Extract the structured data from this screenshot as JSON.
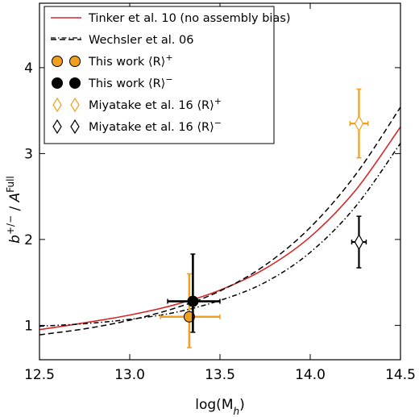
{
  "chart_data": {
    "type": "line",
    "xlabel": "log(M",
    "xlabel_sub": "h",
    "ylabel": "b",
    "ylabel_sup": "+/−",
    "ylabel_denom": "A",
    "ylabel_denom_sup": "Full",
    "xlim": [
      12.5,
      14.5
    ],
    "ylim": [
      0.6,
      4.75
    ],
    "xticks": [
      12.5,
      13.0,
      13.5,
      14.0,
      14.5
    ],
    "xtick_labels": [
      "12.5",
      "13.0",
      "13.5",
      "14.0",
      "14.5"
    ],
    "yticks": [
      1,
      2,
      3,
      4
    ],
    "ytick_labels": [
      "1",
      "2",
      "3",
      "4"
    ],
    "legend_position": "top-left",
    "series": [
      {
        "name": "Tinker et al. 10 (no assembly bias)",
        "kind": "line",
        "style": "solid",
        "color": "#d62728",
        "x": [
          12.5,
          12.75,
          13.0,
          13.25,
          13.5,
          13.75,
          14.0,
          14.25,
          14.5
        ],
        "y": [
          0.95,
          1.03,
          1.12,
          1.24,
          1.41,
          1.66,
          2.03,
          2.57,
          3.31
        ]
      },
      {
        "name": "Wechsler et al. 06",
        "kind": "line",
        "style": "dashed",
        "color": "#000000",
        "x": [
          12.5,
          12.75,
          13.0,
          13.25,
          13.5,
          13.75,
          14.0,
          14.25,
          14.5
        ],
        "y": [
          0.89,
          0.96,
          1.06,
          1.2,
          1.4,
          1.7,
          2.14,
          2.75,
          3.54
        ]
      },
      {
        "name": "",
        "kind": "line",
        "style": "dashdot",
        "color": "#000000",
        "x": [
          12.5,
          12.75,
          13.0,
          13.25,
          13.5,
          13.75,
          14.0,
          14.25,
          14.5
        ],
        "y": [
          0.99,
          1.02,
          1.07,
          1.15,
          1.29,
          1.5,
          1.85,
          2.38,
          3.12
        ]
      },
      {
        "name": "This work ⟨R⟩",
        "name_sup": "+",
        "kind": "point",
        "marker": "circle",
        "color": "#f0a01e",
        "x": 13.33,
        "y": 1.1,
        "xerr": [
          0.16,
          0.17
        ],
        "yerr": [
          0.36,
          0.5
        ]
      },
      {
        "name": "This work ⟨R⟩",
        "name_sup": "−",
        "kind": "point",
        "marker": "circle",
        "color": "#000000",
        "x": 13.35,
        "y": 1.28,
        "xerr": [
          0.14,
          0.15
        ],
        "yerr": [
          0.36,
          0.55
        ]
      },
      {
        "name": "Miyatake et al. 16 ⟨R⟩",
        "name_sup": "+",
        "kind": "point",
        "marker": "diamond",
        "color": "#f0a01e",
        "x": 14.27,
        "y": 3.35,
        "xerr": [
          0.05,
          0.05
        ],
        "yerr": [
          0.4,
          0.4
        ]
      },
      {
        "name": "Miyatake et al. 16 ⟨R⟩",
        "name_sup": "−",
        "kind": "point",
        "marker": "diamond",
        "color": "#000000",
        "x": 14.27,
        "y": 1.97,
        "xerr": [
          0.04,
          0.04
        ],
        "yerr": [
          0.3,
          0.3
        ]
      }
    ]
  }
}
